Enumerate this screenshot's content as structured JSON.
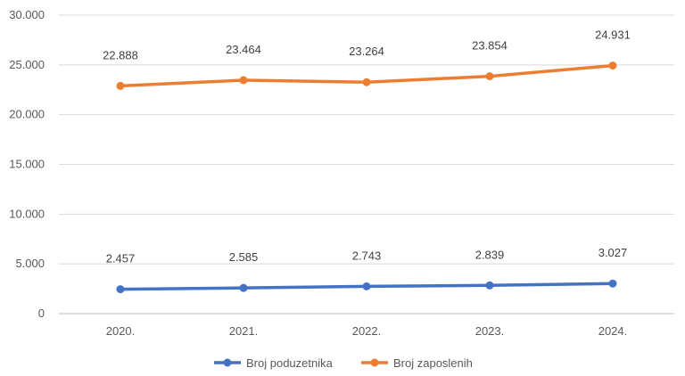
{
  "chart_data": {
    "type": "line",
    "title": "",
    "xlabel": "",
    "ylabel": "",
    "categories": [
      "2020.",
      "2021.",
      "2022.",
      "2023.",
      "2024."
    ],
    "y_ticks": [
      "0",
      "5.000",
      "10.000",
      "15.000",
      "20.000",
      "25.000",
      "30.000"
    ],
    "ylim": [
      0,
      30000
    ],
    "grid": "horizontal",
    "legend_position": "bottom",
    "series": [
      {
        "name": "Broj poduzetnika",
        "color": "#4472C4",
        "values": [
          2457,
          2585,
          2743,
          2839,
          3027
        ],
        "labels": [
          "2.457",
          "2.585",
          "2.743",
          "2.839",
          "3.027"
        ]
      },
      {
        "name": "Broj zaposlenih",
        "color": "#ED7D31",
        "values": [
          22888,
          23464,
          23264,
          23854,
          24931
        ],
        "labels": [
          "22.888",
          "23.464",
          "23.264",
          "23.854",
          "24.931"
        ]
      }
    ]
  }
}
